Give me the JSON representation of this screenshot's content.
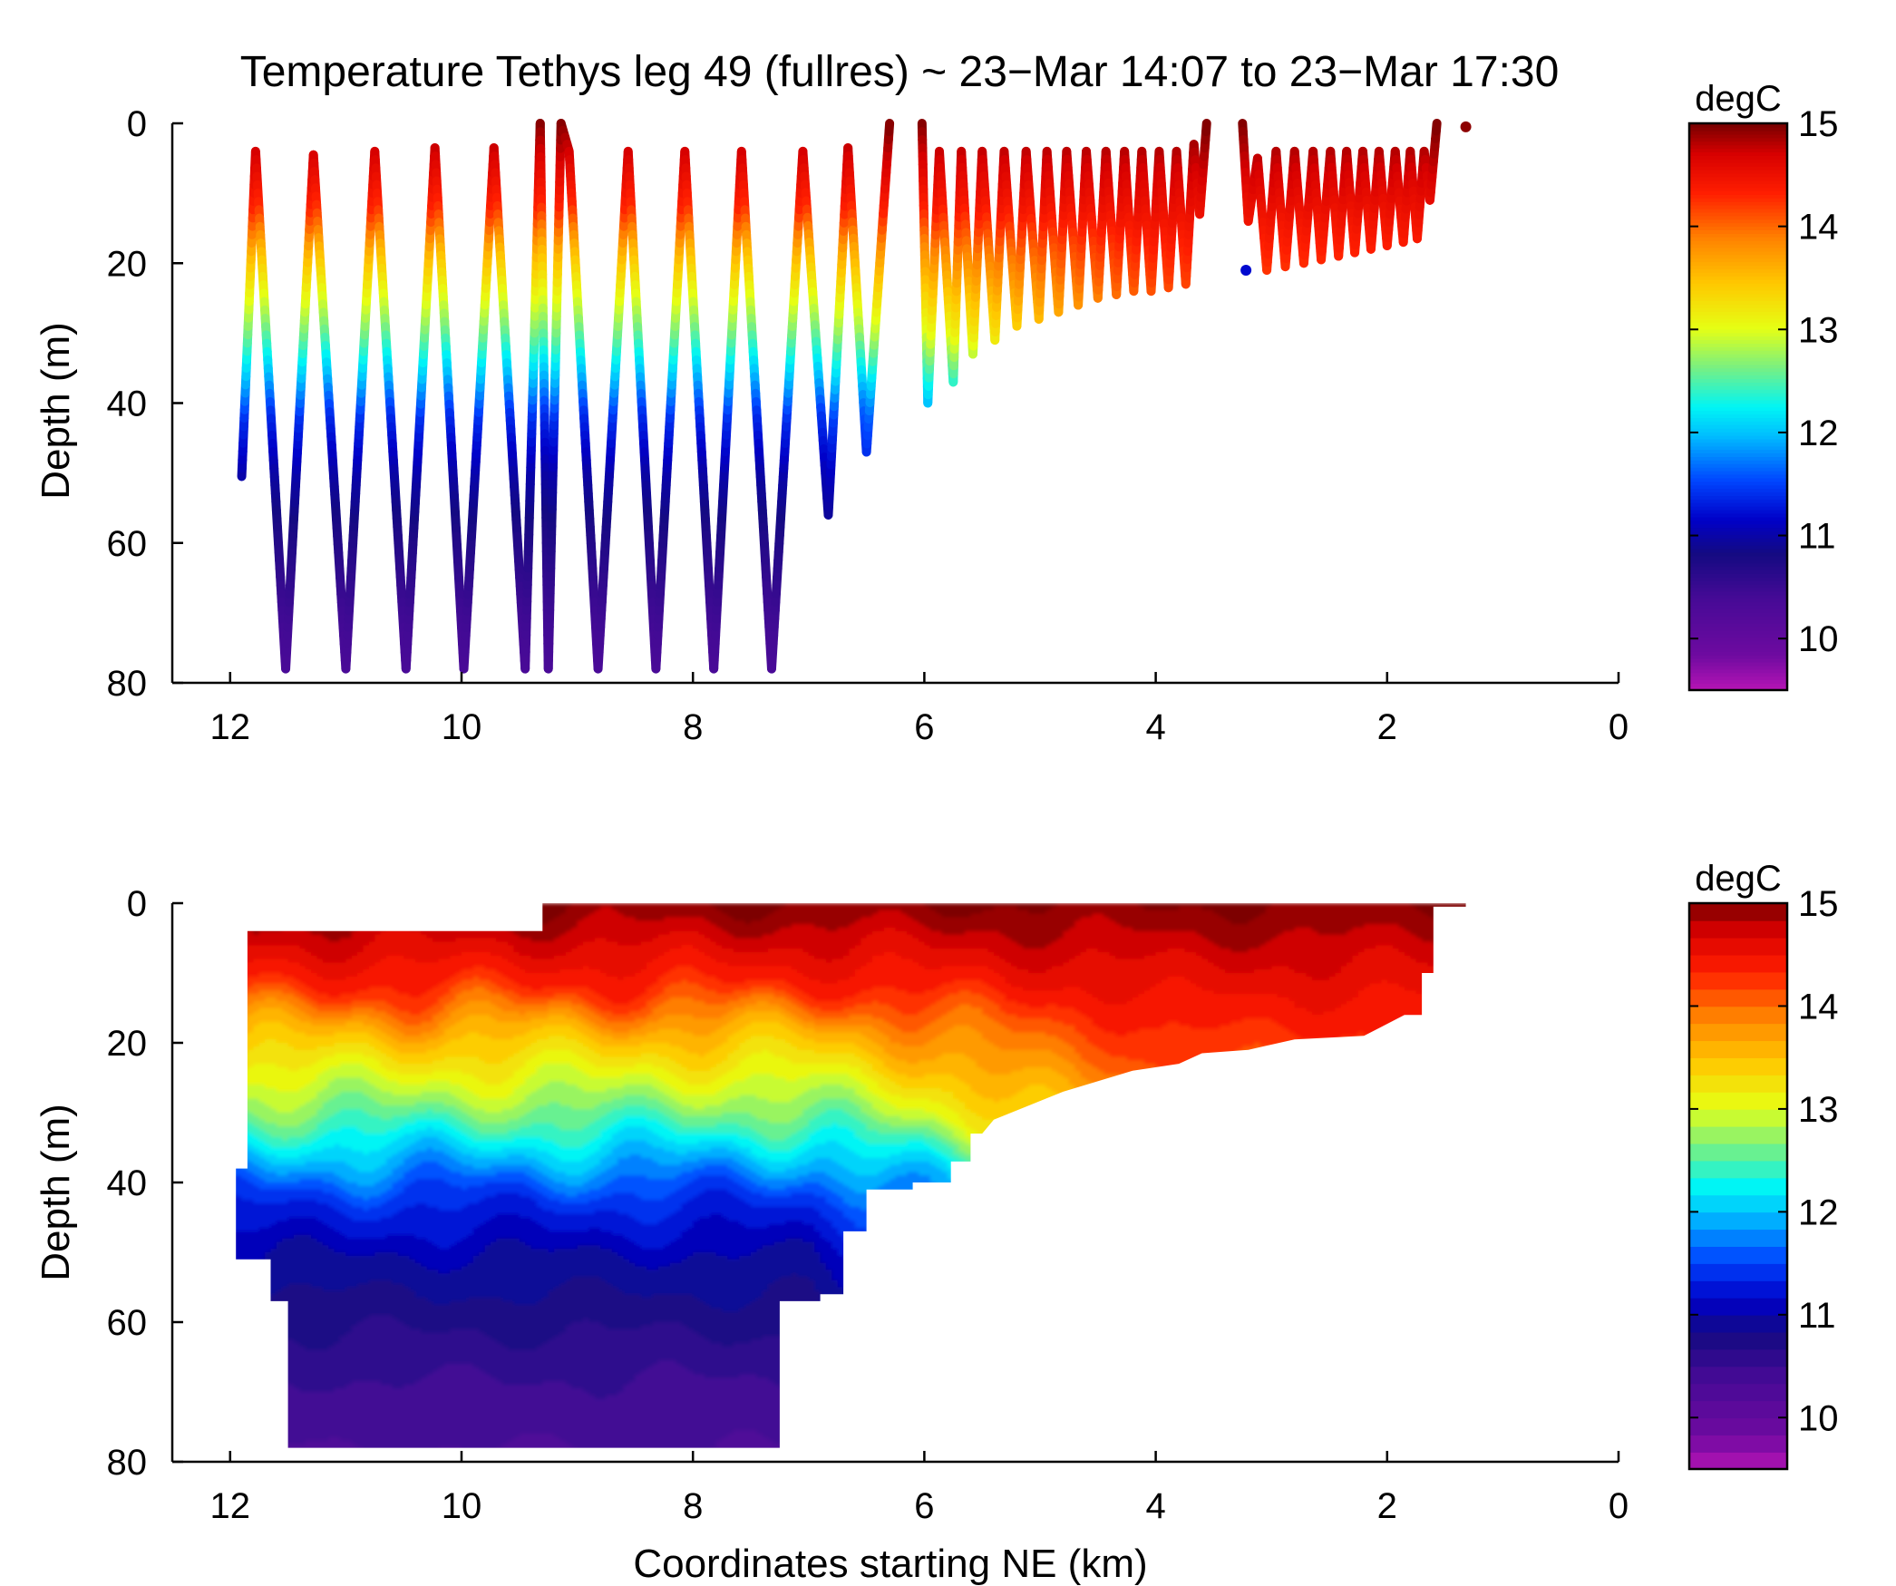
{
  "chart_data": [
    {
      "type": "scatter",
      "title": "Temperature Tethys leg 49 (fullres) ~ 23−Mar 14:07 to 23−Mar 17:30",
      "xlabel": "",
      "ylabel": "Depth (m)",
      "xlim": [
        12.5,
        0
      ],
      "ylim": [
        0,
        80
      ],
      "y_reversed": true,
      "x_ticks": [
        "12",
        "10",
        "8",
        "6",
        "4",
        "2",
        "0"
      ],
      "y_ticks": [
        "0",
        "20",
        "40",
        "60",
        "80"
      ],
      "colorbar": {
        "label": "degC",
        "min": 9.5,
        "max": 15,
        "ticks": [
          "10",
          "11",
          "12",
          "13",
          "14",
          "15"
        ],
        "colormap": "jet-purple",
        "discrete_levels": 0
      },
      "yo_path": [
        [
          11.9,
          50.5
        ],
        [
          11.78,
          4
        ],
        [
          11.52,
          78
        ],
        [
          11.28,
          4.5
        ],
        [
          11.0,
          78
        ],
        [
          10.75,
          4
        ],
        [
          10.48,
          78
        ],
        [
          10.23,
          3.5
        ],
        [
          9.98,
          78
        ],
        [
          9.72,
          3.5
        ],
        [
          9.45,
          78
        ],
        [
          9.32,
          0
        ],
        [
          9.25,
          78
        ],
        [
          9.14,
          0
        ],
        [
          9.07,
          4
        ],
        [
          8.82,
          78
        ],
        [
          8.56,
          4
        ],
        [
          8.32,
          78
        ],
        [
          8.07,
          4
        ],
        [
          7.82,
          78
        ],
        [
          7.58,
          4
        ],
        [
          7.32,
          78
        ],
        [
          7.05,
          4
        ],
        [
          6.83,
          56
        ],
        [
          6.66,
          3.5
        ],
        [
          6.5,
          47
        ],
        [
          6.3,
          0
        ]
      ],
      "yo_path_east": [
        [
          6.02,
          0
        ],
        [
          5.97,
          40
        ],
        [
          5.87,
          4
        ],
        [
          5.75,
          37
        ],
        [
          5.68,
          4
        ],
        [
          5.58,
          33
        ],
        [
          5.5,
          4
        ],
        [
          5.39,
          31
        ],
        [
          5.31,
          4
        ],
        [
          5.2,
          29
        ],
        [
          5.12,
          4
        ],
        [
          5.01,
          28
        ],
        [
          4.94,
          4
        ],
        [
          4.84,
          27
        ],
        [
          4.77,
          4
        ],
        [
          4.67,
          26
        ],
        [
          4.6,
          4
        ],
        [
          4.5,
          25
        ],
        [
          4.43,
          4
        ],
        [
          4.34,
          24.5
        ],
        [
          4.27,
          4
        ],
        [
          4.19,
          24
        ],
        [
          4.12,
          4
        ],
        [
          4.04,
          24
        ],
        [
          3.97,
          4
        ],
        [
          3.89,
          23.5
        ],
        [
          3.82,
          4
        ],
        [
          3.74,
          23
        ],
        [
          3.67,
          3
        ],
        [
          3.62,
          13
        ],
        [
          3.56,
          0
        ]
      ],
      "yo_path_far_east": [
        [
          3.25,
          0
        ],
        [
          3.2,
          14
        ],
        [
          3.12,
          5
        ],
        [
          3.04,
          21
        ],
        [
          2.96,
          4
        ],
        [
          2.88,
          20.5
        ],
        [
          2.8,
          4
        ],
        [
          2.72,
          20
        ],
        [
          2.64,
          4
        ],
        [
          2.57,
          19.5
        ],
        [
          2.49,
          4
        ],
        [
          2.42,
          19
        ],
        [
          2.35,
          4
        ],
        [
          2.28,
          18.5
        ],
        [
          2.21,
          4
        ],
        [
          2.14,
          18
        ],
        [
          2.07,
          4
        ],
        [
          2.0,
          17.5
        ],
        [
          1.93,
          4
        ],
        [
          1.86,
          17
        ],
        [
          1.8,
          4
        ],
        [
          1.74,
          16.5
        ],
        [
          1.68,
          4
        ],
        [
          1.63,
          11
        ],
        [
          1.57,
          0
        ]
      ],
      "extra_points": [
        [
          1.32,
          0.5
        ],
        [
          3.22,
          21
        ]
      ],
      "temperature_profile_west": [
        [
          0,
          15.0
        ],
        [
          5,
          14.7
        ],
        [
          12,
          14.3
        ],
        [
          18,
          13.6
        ],
        [
          24,
          13.1
        ],
        [
          30,
          12.6
        ],
        [
          36,
          12.0
        ],
        [
          42,
          11.4
        ],
        [
          50,
          11.0
        ],
        [
          60,
          10.7
        ],
        [
          70,
          10.45
        ],
        [
          80,
          10.3
        ]
      ],
      "temperature_profile_east": [
        [
          0,
          15.0
        ],
        [
          4,
          14.85
        ],
        [
          10,
          14.6
        ],
        [
          16,
          14.4
        ],
        [
          22,
          14.2
        ],
        [
          30,
          13.8
        ],
        [
          40,
          12.6
        ]
      ]
    },
    {
      "type": "heatmap",
      "title": "",
      "xlabel": "Coordinates starting NE (km)",
      "ylabel": "Depth (m)",
      "xlim": [
        12.5,
        0
      ],
      "ylim": [
        0,
        80
      ],
      "y_reversed": true,
      "x_ticks": [
        "12",
        "10",
        "8",
        "6",
        "4",
        "2",
        "0"
      ],
      "y_ticks": [
        "0",
        "20",
        "40",
        "60",
        "80"
      ],
      "colorbar": {
        "label": "degC",
        "min": 9.5,
        "max": 15,
        "ticks": [
          "10",
          "11",
          "12",
          "13",
          "14",
          "15"
        ],
        "colormap": "jet-purple",
        "discrete_levels": 33
      },
      "boundary": [
        [
          11.85,
          4
        ],
        [
          9.3,
          4
        ],
        [
          9.3,
          0
        ],
        [
          1.32,
          0
        ],
        [
          1.32,
          0.5
        ],
        [
          1.6,
          0.5
        ],
        [
          1.6,
          10
        ],
        [
          1.7,
          10
        ],
        [
          1.7,
          16
        ],
        [
          1.85,
          16
        ],
        [
          2.2,
          19
        ],
        [
          2.8,
          19.5
        ],
        [
          3.2,
          21
        ],
        [
          3.6,
          21.5
        ],
        [
          3.8,
          23
        ],
        [
          4.2,
          24
        ],
        [
          4.8,
          27
        ],
        [
          5.4,
          31
        ],
        [
          5.5,
          33
        ],
        [
          5.6,
          33
        ],
        [
          5.6,
          37
        ],
        [
          5.77,
          37
        ],
        [
          5.77,
          40
        ],
        [
          6.1,
          40
        ],
        [
          6.1,
          41
        ],
        [
          6.5,
          41
        ],
        [
          6.5,
          47
        ],
        [
          6.7,
          47
        ],
        [
          6.7,
          56
        ],
        [
          6.9,
          56
        ],
        [
          6.9,
          57
        ],
        [
          7.25,
          57
        ],
        [
          7.25,
          78
        ],
        [
          11.5,
          78
        ],
        [
          11.5,
          57
        ],
        [
          11.65,
          57
        ],
        [
          11.65,
          51
        ],
        [
          11.95,
          51
        ],
        [
          11.95,
          38
        ],
        [
          11.85,
          38
        ]
      ],
      "temperature_profile_west": [
        [
          0,
          15.0
        ],
        [
          5,
          14.7
        ],
        [
          12,
          14.3
        ],
        [
          18,
          13.6
        ],
        [
          24,
          13.1
        ],
        [
          30,
          12.6
        ],
        [
          36,
          12.0
        ],
        [
          42,
          11.4
        ],
        [
          50,
          11.0
        ],
        [
          60,
          10.7
        ],
        [
          70,
          10.45
        ],
        [
          80,
          10.3
        ]
      ],
      "temperature_profile_east": [
        [
          0,
          15.0
        ],
        [
          4,
          14.85
        ],
        [
          10,
          14.6
        ],
        [
          16,
          14.4
        ],
        [
          22,
          14.2
        ],
        [
          30,
          13.8
        ],
        [
          40,
          12.6
        ]
      ]
    }
  ]
}
